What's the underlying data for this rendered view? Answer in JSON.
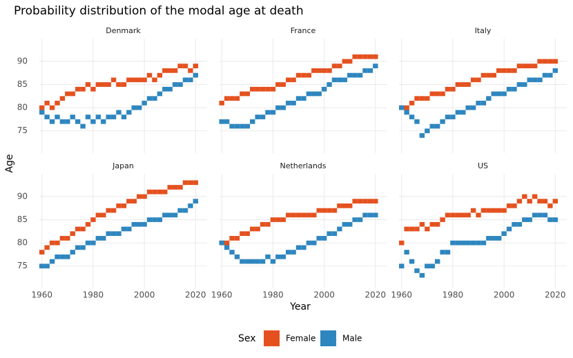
{
  "title": "Probability distribution of the modal age at death",
  "x_label": "Year",
  "y_label": "Age",
  "legend_title": "Sex",
  "chart_data": [
    {
      "type": "tile",
      "title": "Denmark",
      "x": [
        1960,
        1962,
        1964,
        1966,
        1968,
        1970,
        1972,
        1974,
        1976,
        1978,
        1980,
        1982,
        1984,
        1986,
        1988,
        1990,
        1992,
        1994,
        1996,
        1998,
        2000,
        2002,
        2004,
        2006,
        2008,
        2010,
        2012,
        2014,
        2016,
        2018,
        2020
      ],
      "xlim": [
        1959,
        2024.5
      ],
      "xticks": [
        1960,
        1980,
        2000,
        2020
      ],
      "ylim": [
        70.2,
        94.9
      ],
      "yticks": [
        75,
        80,
        85,
        90
      ],
      "grid": true,
      "series": [
        {
          "name": "Female",
          "color": "#e4511f",
          "values": [
            80,
            81,
            80,
            81,
            82,
            83,
            83,
            84,
            84,
            85,
            84,
            85,
            85,
            85,
            86,
            85,
            85,
            86,
            86,
            86,
            86,
            87,
            86,
            87,
            88,
            88,
            88,
            89,
            89,
            88,
            89
          ]
        },
        {
          "name": "Male",
          "color": "#2e86bf",
          "values": [
            79,
            78,
            77,
            78,
            77,
            77,
            78,
            77,
            76,
            78,
            77,
            78,
            77,
            78,
            78,
            79,
            78,
            79,
            80,
            80,
            81,
            82,
            82,
            83,
            84,
            84,
            85,
            85,
            86,
            86,
            87
          ]
        }
      ]
    },
    {
      "type": "tile",
      "title": "France",
      "x": [
        1960,
        1962,
        1964,
        1966,
        1968,
        1970,
        1972,
        1974,
        1976,
        1978,
        1980,
        1982,
        1984,
        1986,
        1988,
        1990,
        1992,
        1994,
        1996,
        1998,
        2000,
        2002,
        2004,
        2006,
        2008,
        2010,
        2012,
        2014,
        2016,
        2018,
        2020
      ],
      "xlim": [
        1959,
        2024.5
      ],
      "xticks": [
        1960,
        1980,
        2000,
        2020
      ],
      "ylim": [
        70.2,
        94.9
      ],
      "yticks": [
        75,
        80,
        85,
        90
      ],
      "grid": true,
      "series": [
        {
          "name": "Female",
          "color": "#e4511f",
          "values": [
            81,
            82,
            82,
            82,
            83,
            83,
            84,
            84,
            84,
            84,
            84,
            85,
            85,
            86,
            86,
            87,
            87,
            87,
            88,
            88,
            88,
            88,
            89,
            89,
            90,
            90,
            91,
            91,
            91,
            91,
            91
          ]
        },
        {
          "name": "Male",
          "color": "#2e86bf",
          "values": [
            77,
            77,
            76,
            76,
            76,
            76,
            77,
            78,
            78,
            79,
            79,
            80,
            80,
            81,
            81,
            82,
            82,
            83,
            83,
            83,
            84,
            85,
            86,
            86,
            86,
            87,
            87,
            87,
            88,
            88,
            89
          ]
        }
      ]
    },
    {
      "type": "tile",
      "title": "Italy",
      "x": [
        1960,
        1962,
        1964,
        1966,
        1968,
        1970,
        1972,
        1974,
        1976,
        1978,
        1980,
        1982,
        1984,
        1986,
        1988,
        1990,
        1992,
        1994,
        1996,
        1998,
        2000,
        2002,
        2004,
        2006,
        2008,
        2010,
        2012,
        2014,
        2016,
        2018,
        2020
      ],
      "xlim": [
        1959,
        2024.5
      ],
      "xticks": [
        1960,
        1980,
        2000,
        2020
      ],
      "ylim": [
        70.2,
        94.9
      ],
      "yticks": [
        75,
        80,
        85,
        90
      ],
      "grid": true,
      "series": [
        {
          "name": "Female",
          "color": "#e4511f",
          "values": [
            80,
            80,
            81,
            82,
            82,
            82,
            83,
            83,
            83,
            84,
            84,
            85,
            85,
            85,
            86,
            86,
            87,
            87,
            87,
            88,
            88,
            88,
            88,
            89,
            89,
            89,
            89,
            90,
            90,
            90,
            90
          ]
        },
        {
          "name": "Male",
          "color": "#2e86bf",
          "values": [
            80,
            79,
            78,
            77,
            74,
            75,
            76,
            76,
            77,
            78,
            78,
            79,
            79,
            80,
            80,
            81,
            81,
            82,
            83,
            83,
            83,
            84,
            84,
            85,
            85,
            86,
            86,
            86,
            87,
            87,
            88
          ]
        }
      ]
    },
    {
      "type": "tile",
      "title": "Japan",
      "x": [
        1960,
        1962,
        1964,
        1966,
        1968,
        1970,
        1972,
        1974,
        1976,
        1978,
        1980,
        1982,
        1984,
        1986,
        1988,
        1990,
        1992,
        1994,
        1996,
        1998,
        2000,
        2002,
        2004,
        2006,
        2008,
        2010,
        2012,
        2014,
        2016,
        2018,
        2020
      ],
      "xlim": [
        1959,
        2024.5
      ],
      "xticks": [
        1960,
        1980,
        2000,
        2020
      ],
      "ylim": [
        70.2,
        94.9
      ],
      "yticks": [
        75,
        80,
        85,
        90
      ],
      "grid": true,
      "series": [
        {
          "name": "Female",
          "color": "#e4511f",
          "values": [
            78,
            79,
            80,
            80,
            81,
            81,
            82,
            83,
            83,
            84,
            85,
            86,
            86,
            87,
            87,
            88,
            88,
            89,
            89,
            90,
            90,
            91,
            91,
            91,
            91,
            92,
            92,
            92,
            93,
            93,
            93
          ]
        },
        {
          "name": "Male",
          "color": "#2e86bf",
          "values": [
            75,
            75,
            76,
            77,
            77,
            77,
            78,
            79,
            79,
            80,
            80,
            81,
            81,
            82,
            82,
            82,
            83,
            83,
            84,
            84,
            84,
            85,
            85,
            85,
            86,
            86,
            86,
            87,
            87,
            88,
            89
          ]
        }
      ]
    },
    {
      "type": "tile",
      "title": "Netherlands",
      "x": [
        1960,
        1962,
        1964,
        1966,
        1968,
        1970,
        1972,
        1974,
        1976,
        1978,
        1980,
        1982,
        1984,
        1986,
        1988,
        1990,
        1992,
        1994,
        1996,
        1998,
        2000,
        2002,
        2004,
        2006,
        2008,
        2010,
        2012,
        2014,
        2016,
        2018,
        2020
      ],
      "xlim": [
        1959,
        2024.5
      ],
      "xticks": [
        1960,
        1980,
        2000,
        2020
      ],
      "ylim": [
        70.2,
        94.9
      ],
      "yticks": [
        75,
        80,
        85,
        90
      ],
      "grid": true,
      "series": [
        {
          "name": "Female",
          "color": "#e4511f",
          "values": [
            80,
            80,
            81,
            81,
            82,
            82,
            83,
            83,
            84,
            84,
            85,
            85,
            85,
            86,
            86,
            86,
            86,
            86,
            86,
            87,
            87,
            87,
            87,
            88,
            88,
            88,
            89,
            89,
            89,
            89,
            89
          ]
        },
        {
          "name": "Male",
          "color": "#2e86bf",
          "values": [
            80,
            79,
            78,
            77,
            76,
            76,
            76,
            76,
            76,
            77,
            76,
            77,
            77,
            78,
            78,
            79,
            79,
            80,
            80,
            81,
            81,
            82,
            82,
            83,
            84,
            84,
            85,
            85,
            86,
            86,
            86
          ]
        }
      ]
    },
    {
      "type": "tile",
      "title": "US",
      "x": [
        1960,
        1962,
        1964,
        1966,
        1968,
        1970,
        1972,
        1974,
        1976,
        1978,
        1980,
        1982,
        1984,
        1986,
        1988,
        1990,
        1992,
        1994,
        1996,
        1998,
        2000,
        2002,
        2004,
        2006,
        2008,
        2010,
        2012,
        2014,
        2016,
        2018,
        2020
      ],
      "xlim": [
        1959,
        2024.5
      ],
      "xticks": [
        1960,
        1980,
        2000,
        2020
      ],
      "ylim": [
        70.2,
        94.9
      ],
      "yticks": [
        75,
        80,
        85,
        90
      ],
      "grid": true,
      "series": [
        {
          "name": "Female",
          "color": "#e4511f",
          "values": [
            80,
            83,
            83,
            83,
            84,
            83,
            84,
            84,
            85,
            86,
            86,
            86,
            86,
            86,
            87,
            86,
            87,
            87,
            87,
            87,
            87,
            88,
            88,
            89,
            90,
            89,
            90,
            89,
            89,
            88,
            89
          ]
        },
        {
          "name": "Male",
          "color": "#2e86bf",
          "values": [
            75,
            78,
            76,
            74,
            73,
            75,
            75,
            76,
            78,
            78,
            80,
            80,
            80,
            80,
            80,
            80,
            80,
            81,
            81,
            81,
            82,
            83,
            84,
            84,
            85,
            85,
            86,
            86,
            86,
            85,
            85
          ]
        }
      ]
    }
  ]
}
